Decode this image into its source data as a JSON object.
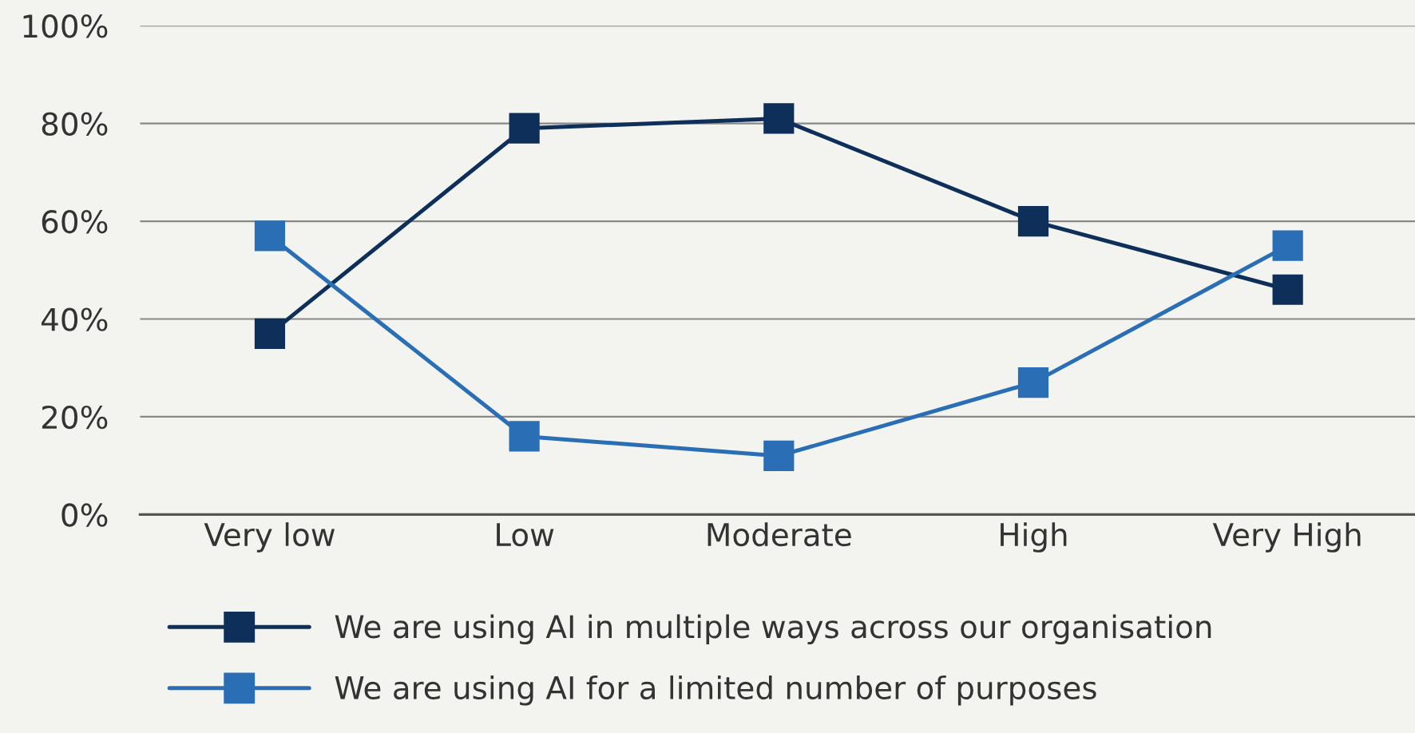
{
  "chart_data": {
    "type": "line",
    "categories": [
      "Very low",
      "Low",
      "Moderate",
      "High",
      "Very High"
    ],
    "series": [
      {
        "name": "We are using AI in multiple ways across our organisation",
        "color": "#0e2f5a",
        "values": [
          37,
          79,
          81,
          60,
          46
        ]
      },
      {
        "name": "We are using AI for a limited number of purposes",
        "color": "#2a6fb5",
        "values": [
          57,
          16,
          12,
          27,
          55
        ]
      }
    ],
    "ylim": [
      0,
      100
    ],
    "yticks": [
      {
        "value": 0,
        "label": "0%"
      },
      {
        "value": 20,
        "label": "20%"
      },
      {
        "value": 40,
        "label": "40%"
      },
      {
        "value": 60,
        "label": "60%"
      },
      {
        "value": 80,
        "label": "80%"
      },
      {
        "value": 100,
        "label": "100%"
      }
    ],
    "grid": "y",
    "legend": "bottom",
    "marker": "square",
    "line_style": "solid"
  }
}
